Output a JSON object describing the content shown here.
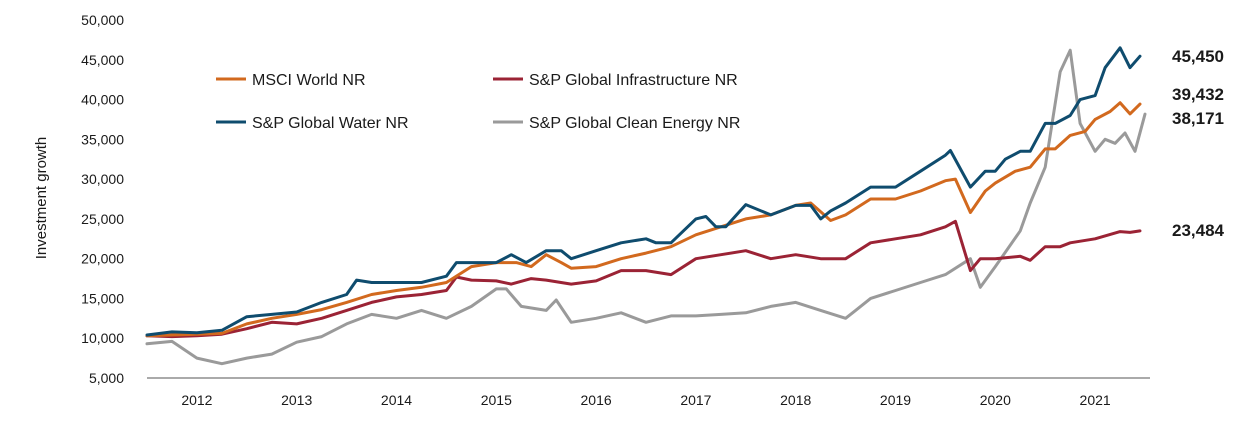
{
  "chart_data": {
    "type": "line",
    "title": "",
    "ylabel": "Investment growth",
    "xlabel": "",
    "ylim": [
      5000,
      50000
    ],
    "xlim": [
      2011.5,
      2021.55
    ],
    "y_ticks": [
      5000,
      10000,
      15000,
      20000,
      25000,
      30000,
      35000,
      40000,
      45000,
      50000
    ],
    "y_tick_labels": [
      "5,000",
      "10,000",
      "15,000",
      "20,000",
      "25,000",
      "30,000",
      "35,000",
      "40,000",
      "45,000",
      "50,000"
    ],
    "x_tick_labels": [
      "2012",
      "2013",
      "2014",
      "2015",
      "2016",
      "2017",
      "2018",
      "2019",
      "2020",
      "2021"
    ],
    "x_tick_positions": [
      2012,
      2013,
      2014,
      2015,
      2016,
      2017,
      2018,
      2019,
      2020,
      2021
    ],
    "grid": false,
    "legend_position": "top-left",
    "series": [
      {
        "name": "MSCI World NR",
        "color": "#D2691E",
        "end_label": "39,432",
        "points": [
          [
            2011.5,
            10300
          ],
          [
            2011.75,
            10400
          ],
          [
            2012.0,
            10500
          ],
          [
            2012.25,
            10600
          ],
          [
            2012.5,
            11800
          ],
          [
            2012.75,
            12500
          ],
          [
            2013.0,
            13000
          ],
          [
            2013.25,
            13600
          ],
          [
            2013.5,
            14500
          ],
          [
            2013.75,
            15500
          ],
          [
            2014.0,
            16000
          ],
          [
            2014.25,
            16400
          ],
          [
            2014.5,
            17000
          ],
          [
            2014.75,
            19000
          ],
          [
            2015.0,
            19500
          ],
          [
            2015.2,
            19500
          ],
          [
            2015.35,
            19000
          ],
          [
            2015.5,
            20500
          ],
          [
            2015.65,
            19500
          ],
          [
            2015.75,
            18800
          ],
          [
            2016.0,
            19000
          ],
          [
            2016.25,
            20000
          ],
          [
            2016.5,
            20700
          ],
          [
            2016.75,
            21500
          ],
          [
            2017.0,
            23000
          ],
          [
            2017.25,
            24000
          ],
          [
            2017.5,
            25000
          ],
          [
            2017.75,
            25500
          ],
          [
            2018.0,
            26700
          ],
          [
            2018.15,
            27000
          ],
          [
            2018.35,
            24800
          ],
          [
            2018.5,
            25500
          ],
          [
            2018.75,
            27500
          ],
          [
            2019.0,
            27500
          ],
          [
            2019.25,
            28500
          ],
          [
            2019.5,
            29800
          ],
          [
            2019.6,
            30000
          ],
          [
            2019.75,
            25800
          ],
          [
            2019.9,
            28500
          ],
          [
            2020.0,
            29500
          ],
          [
            2020.2,
            31000
          ],
          [
            2020.35,
            31500
          ],
          [
            2020.5,
            33800
          ],
          [
            2020.6,
            33800
          ],
          [
            2020.75,
            35500
          ],
          [
            2020.9,
            36000
          ],
          [
            2021.0,
            37500
          ],
          [
            2021.15,
            38500
          ],
          [
            2021.25,
            39600
          ],
          [
            2021.35,
            38200
          ],
          [
            2021.45,
            39432
          ]
        ]
      },
      {
        "name": "S&P Global Infrastructure NR",
        "color": "#9B2335",
        "end_label": "23,484",
        "points": [
          [
            2011.5,
            10300
          ],
          [
            2011.75,
            10200
          ],
          [
            2012.0,
            10300
          ],
          [
            2012.25,
            10500
          ],
          [
            2012.5,
            11200
          ],
          [
            2012.75,
            12000
          ],
          [
            2013.0,
            11800
          ],
          [
            2013.25,
            12500
          ],
          [
            2013.5,
            13500
          ],
          [
            2013.75,
            14500
          ],
          [
            2014.0,
            15200
          ],
          [
            2014.25,
            15500
          ],
          [
            2014.5,
            16000
          ],
          [
            2014.6,
            17700
          ],
          [
            2014.75,
            17300
          ],
          [
            2015.0,
            17200
          ],
          [
            2015.15,
            16800
          ],
          [
            2015.35,
            17500
          ],
          [
            2015.5,
            17300
          ],
          [
            2015.75,
            16800
          ],
          [
            2016.0,
            17200
          ],
          [
            2016.25,
            18500
          ],
          [
            2016.5,
            18500
          ],
          [
            2016.75,
            18000
          ],
          [
            2017.0,
            20000
          ],
          [
            2017.25,
            20500
          ],
          [
            2017.5,
            21000
          ],
          [
            2017.75,
            20000
          ],
          [
            2018.0,
            20500
          ],
          [
            2018.25,
            20000
          ],
          [
            2018.5,
            20000
          ],
          [
            2018.75,
            22000
          ],
          [
            2019.0,
            22500
          ],
          [
            2019.25,
            23000
          ],
          [
            2019.5,
            24000
          ],
          [
            2019.6,
            24700
          ],
          [
            2019.75,
            18500
          ],
          [
            2019.85,
            20000
          ],
          [
            2020.0,
            20000
          ],
          [
            2020.25,
            20300
          ],
          [
            2020.35,
            19800
          ],
          [
            2020.5,
            21500
          ],
          [
            2020.65,
            21500
          ],
          [
            2020.75,
            22000
          ],
          [
            2021.0,
            22500
          ],
          [
            2021.25,
            23400
          ],
          [
            2021.35,
            23300
          ],
          [
            2021.45,
            23484
          ]
        ]
      },
      {
        "name": "S&P Global Water NR",
        "color": "#0F4C6E",
        "end_label": "45,450",
        "points": [
          [
            2011.5,
            10400
          ],
          [
            2011.75,
            10800
          ],
          [
            2012.0,
            10700
          ],
          [
            2012.25,
            11000
          ],
          [
            2012.5,
            12700
          ],
          [
            2012.75,
            13000
          ],
          [
            2013.0,
            13300
          ],
          [
            2013.25,
            14500
          ],
          [
            2013.5,
            15500
          ],
          [
            2013.6,
            17300
          ],
          [
            2013.75,
            17000
          ],
          [
            2014.0,
            17000
          ],
          [
            2014.25,
            17000
          ],
          [
            2014.5,
            17800
          ],
          [
            2014.6,
            19500
          ],
          [
            2014.75,
            19500
          ],
          [
            2015.0,
            19500
          ],
          [
            2015.15,
            20500
          ],
          [
            2015.3,
            19500
          ],
          [
            2015.5,
            21000
          ],
          [
            2015.65,
            21000
          ],
          [
            2015.75,
            20000
          ],
          [
            2016.0,
            21000
          ],
          [
            2016.25,
            22000
          ],
          [
            2016.5,
            22500
          ],
          [
            2016.6,
            22000
          ],
          [
            2016.75,
            22000
          ],
          [
            2017.0,
            25000
          ],
          [
            2017.1,
            25300
          ],
          [
            2017.2,
            24000
          ],
          [
            2017.3,
            24000
          ],
          [
            2017.5,
            26800
          ],
          [
            2017.75,
            25500
          ],
          [
            2018.0,
            26700
          ],
          [
            2018.15,
            26700
          ],
          [
            2018.25,
            25000
          ],
          [
            2018.35,
            26000
          ],
          [
            2018.5,
            27000
          ],
          [
            2018.75,
            29000
          ],
          [
            2019.0,
            29000
          ],
          [
            2019.25,
            31000
          ],
          [
            2019.5,
            33000
          ],
          [
            2019.55,
            33600
          ],
          [
            2019.75,
            29000
          ],
          [
            2019.9,
            31000
          ],
          [
            2020.0,
            31000
          ],
          [
            2020.1,
            32500
          ],
          [
            2020.25,
            33500
          ],
          [
            2020.35,
            33500
          ],
          [
            2020.5,
            37000
          ],
          [
            2020.6,
            37000
          ],
          [
            2020.75,
            38000
          ],
          [
            2020.85,
            40000
          ],
          [
            2021.0,
            40500
          ],
          [
            2021.1,
            44000
          ],
          [
            2021.25,
            46500
          ],
          [
            2021.35,
            44000
          ],
          [
            2021.45,
            45450
          ]
        ]
      },
      {
        "name": "S&P Global Clean Energy NR",
        "color": "#9A9A9A",
        "end_label": "38,171",
        "points": [
          [
            2011.5,
            9300
          ],
          [
            2011.75,
            9600
          ],
          [
            2012.0,
            7500
          ],
          [
            2012.25,
            6800
          ],
          [
            2012.5,
            7500
          ],
          [
            2012.75,
            8000
          ],
          [
            2013.0,
            9500
          ],
          [
            2013.25,
            10200
          ],
          [
            2013.5,
            11800
          ],
          [
            2013.75,
            13000
          ],
          [
            2014.0,
            12500
          ],
          [
            2014.25,
            13500
          ],
          [
            2014.5,
            12500
          ],
          [
            2014.75,
            14000
          ],
          [
            2015.0,
            16200
          ],
          [
            2015.1,
            16200
          ],
          [
            2015.25,
            14000
          ],
          [
            2015.5,
            13500
          ],
          [
            2015.6,
            14800
          ],
          [
            2015.75,
            12000
          ],
          [
            2016.0,
            12500
          ],
          [
            2016.25,
            13200
          ],
          [
            2016.5,
            12000
          ],
          [
            2016.75,
            12800
          ],
          [
            2017.0,
            12800
          ],
          [
            2017.25,
            13000
          ],
          [
            2017.5,
            13200
          ],
          [
            2017.75,
            14000
          ],
          [
            2018.0,
            14500
          ],
          [
            2018.25,
            13500
          ],
          [
            2018.5,
            12500
          ],
          [
            2018.6,
            13500
          ],
          [
            2018.75,
            15000
          ],
          [
            2019.0,
            16000
          ],
          [
            2019.25,
            17000
          ],
          [
            2019.5,
            18000
          ],
          [
            2019.75,
            20000
          ],
          [
            2019.85,
            16400
          ],
          [
            2020.0,
            19000
          ],
          [
            2020.25,
            23500
          ],
          [
            2020.35,
            27000
          ],
          [
            2020.5,
            31500
          ],
          [
            2020.65,
            43500
          ],
          [
            2020.75,
            46200
          ],
          [
            2020.85,
            37000
          ],
          [
            2021.0,
            33500
          ],
          [
            2021.1,
            35000
          ],
          [
            2021.2,
            34500
          ],
          [
            2021.3,
            35800
          ],
          [
            2021.4,
            33500
          ],
          [
            2021.5,
            38171
          ]
        ]
      }
    ],
    "legend_rows": [
      [
        "MSCI World NR",
        "S&P Global Infrastructure NR"
      ],
      [
        "S&P Global Water NR",
        "S&P Global Clean Energy NR"
      ]
    ]
  }
}
